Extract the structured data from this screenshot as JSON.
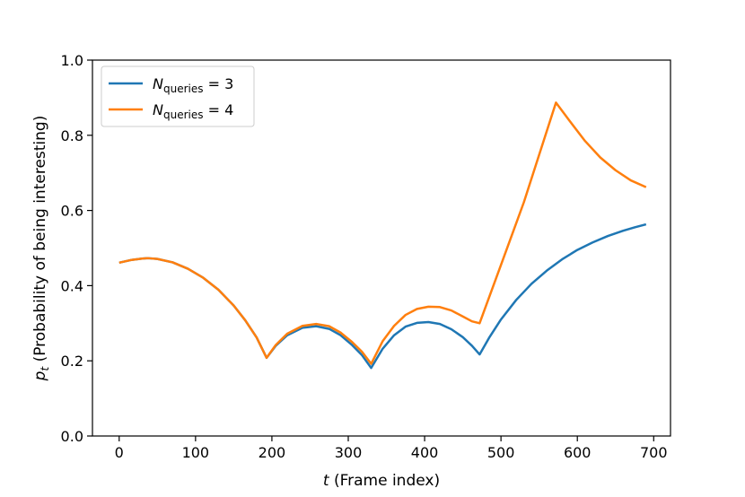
{
  "chart_data": {
    "type": "line",
    "title": "",
    "xlabel": {
      "var": "t",
      "text": " (Frame index)"
    },
    "ylabel": {
      "var": "p",
      "sub": "t",
      "text": " (Probability of being interesting)"
    },
    "xlim": [
      -35,
      722
    ],
    "ylim": [
      0.0,
      1.0
    ],
    "xticks": [
      0,
      100,
      200,
      300,
      400,
      500,
      600,
      700
    ],
    "yticks": [
      0.0,
      0.2,
      0.4,
      0.6,
      0.8,
      1.0
    ],
    "xtick_labels": [
      "0",
      "100",
      "200",
      "300",
      "400",
      "500",
      "600",
      "700"
    ],
    "ytick_labels": [
      "0.0",
      "0.2",
      "0.4",
      "0.6",
      "0.8",
      "1.0"
    ],
    "grid": false,
    "legend_position": "top-left",
    "series": [
      {
        "name": {
          "var": "N",
          "sub": "queries",
          "text": " = 3"
        },
        "color": "#1f77b4",
        "x": [
          0,
          15,
          30,
          38,
          50,
          70,
          90,
          110,
          130,
          150,
          165,
          180,
          193,
          205,
          220,
          240,
          258,
          275,
          290,
          305,
          318,
          330,
          345,
          360,
          375,
          390,
          405,
          420,
          435,
          450,
          462,
          472,
          485,
          500,
          520,
          540,
          560,
          580,
          600,
          620,
          640,
          660,
          675,
          690
        ],
        "y": [
          0.461,
          0.468,
          0.472,
          0.473,
          0.471,
          0.462,
          0.445,
          0.421,
          0.389,
          0.347,
          0.308,
          0.262,
          0.208,
          0.24,
          0.268,
          0.288,
          0.292,
          0.285,
          0.268,
          0.242,
          0.215,
          0.181,
          0.232,
          0.268,
          0.291,
          0.301,
          0.303,
          0.298,
          0.284,
          0.263,
          0.24,
          0.217,
          0.263,
          0.31,
          0.362,
          0.405,
          0.44,
          0.47,
          0.495,
          0.515,
          0.532,
          0.546,
          0.555,
          0.563
        ]
      },
      {
        "name": {
          "var": "N",
          "sub": "queries",
          "text": " = 4"
        },
        "color": "#ff7f0e",
        "x": [
          0,
          15,
          30,
          38,
          50,
          70,
          90,
          110,
          130,
          150,
          165,
          180,
          193,
          205,
          220,
          240,
          258,
          275,
          290,
          305,
          318,
          330,
          345,
          360,
          375,
          390,
          405,
          420,
          435,
          450,
          462,
          472,
          500,
          530,
          572,
          590,
          610,
          630,
          650,
          670,
          690
        ],
        "y": [
          0.461,
          0.468,
          0.472,
          0.473,
          0.471,
          0.462,
          0.445,
          0.421,
          0.389,
          0.347,
          0.308,
          0.262,
          0.208,
          0.242,
          0.272,
          0.293,
          0.298,
          0.292,
          0.275,
          0.25,
          0.224,
          0.192,
          0.252,
          0.293,
          0.322,
          0.338,
          0.344,
          0.343,
          0.334,
          0.318,
          0.305,
          0.3,
          0.455,
          0.622,
          0.887,
          0.838,
          0.785,
          0.741,
          0.707,
          0.68,
          0.662
        ]
      }
    ]
  }
}
